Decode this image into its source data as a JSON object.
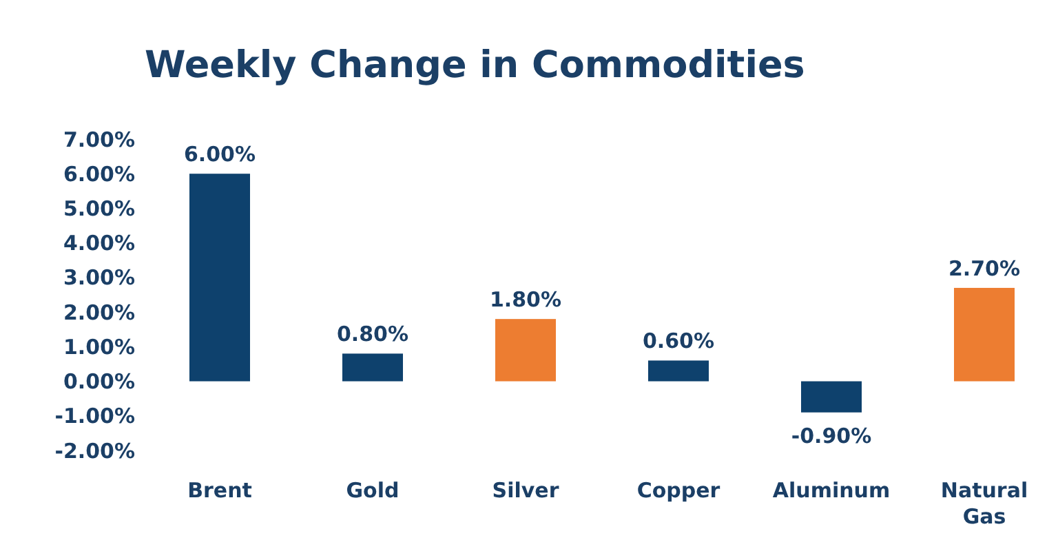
{
  "chart_data": {
    "type": "bar",
    "title": "Weekly Change in Commodities",
    "categories": [
      "Brent",
      "Gold",
      "Silver",
      "Copper",
      "Aluminum",
      "Natural Gas"
    ],
    "values": [
      6.0,
      0.8,
      1.8,
      0.6,
      -0.9,
      2.7
    ],
    "colors": [
      "#0e416d",
      "#0e416d",
      "#ed7d31",
      "#0e416d",
      "#0e416d",
      "#ed7d31"
    ],
    "value_labels": [
      "6.00%",
      "0.80%",
      "1.80%",
      "0.60%",
      "-0.90%",
      "2.70%"
    ],
    "ylim": [
      -2,
      7
    ],
    "yticks": [
      {
        "value": -2,
        "label": "-2.00%"
      },
      {
        "value": -1,
        "label": "-1.00%"
      },
      {
        "value": 0,
        "label": "0.00%"
      },
      {
        "value": 1,
        "label": "1.00%"
      },
      {
        "value": 2,
        "label": "2.00%"
      },
      {
        "value": 3,
        "label": "3.00%"
      },
      {
        "value": 4,
        "label": "4.00%"
      },
      {
        "value": 5,
        "label": "5.00%"
      },
      {
        "value": 6,
        "label": "6.00%"
      },
      {
        "value": 7,
        "label": "7.00%"
      }
    ],
    "grid": false
  }
}
